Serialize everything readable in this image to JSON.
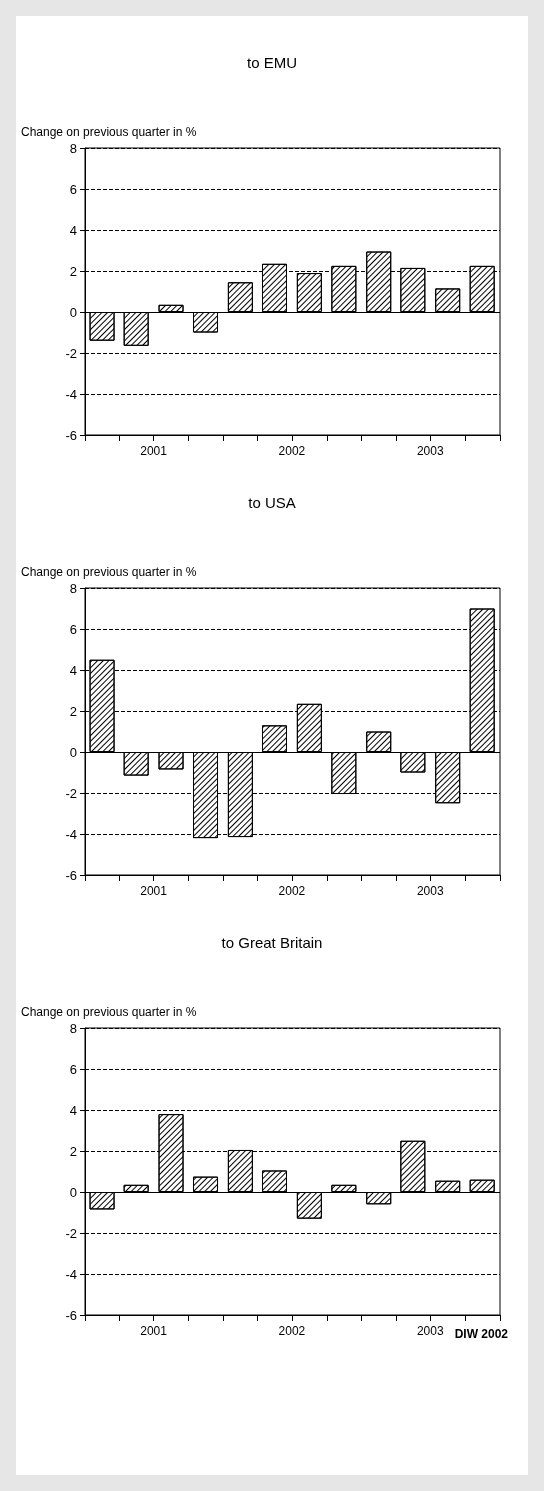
{
  "chart_data": [
    {
      "type": "bar",
      "title": "to EMU",
      "ylabel": "Change on previous quarter in %",
      "x": [
        "2001-02-15",
        "2001-05-16",
        "2001-08-16",
        "2001-11-15",
        "2002-02-15",
        "2002-05-16",
        "2002-08-16",
        "2002-11-15",
        "2003-02-15",
        "2003-05-16",
        "2003-08-16",
        "2003-11-15"
      ],
      "values": [
        -1.4,
        -1.65,
        0.35,
        -1.0,
        1.45,
        2.35,
        1.9,
        2.25,
        2.95,
        2.15,
        1.15,
        2.25
      ],
      "color": "#ffffff",
      "xlim": [
        "2001-01-01",
        "2004-01-01"
      ],
      "xticks": [
        {
          "value": "2001-01-01",
          "label": null
        },
        {
          "value": "2001-04-01",
          "label": null
        },
        {
          "value": "2001-07-01",
          "label": "2001"
        },
        {
          "value": "2001-10-01",
          "label": null
        },
        {
          "value": "2002-01-01",
          "label": null
        },
        {
          "value": "2002-04-01",
          "label": null
        },
        {
          "value": "2002-07-01",
          "label": "2002"
        },
        {
          "value": "2002-10-01",
          "label": null
        },
        {
          "value": "2003-01-01",
          "label": null
        },
        {
          "value": "2003-04-01",
          "label": null
        },
        {
          "value": "2003-07-01",
          "label": "2003"
        },
        {
          "value": "2003-10-01",
          "label": null
        },
        {
          "value": "2004-01-01",
          "label": null
        }
      ],
      "ylim": [
        -6,
        8
      ],
      "yticks": [
        -6,
        -4,
        -2,
        0,
        2,
        4,
        6,
        8
      ],
      "grid": "y",
      "ref_lines": [
        {
          "axis": "y",
          "value": 0,
          "line_style": "solid"
        }
      ]
    },
    {
      "type": "bar",
      "title": "to USA",
      "ylabel": "Change on previous quarter in %",
      "x": [
        "2001-02-15",
        "2001-05-16",
        "2001-08-16",
        "2001-11-15",
        "2002-02-15",
        "2002-05-16",
        "2002-08-16",
        "2002-11-15",
        "2003-02-15",
        "2003-05-16",
        "2003-08-16",
        "2003-11-15"
      ],
      "values": [
        4.5,
        -1.15,
        -0.85,
        -4.2,
        -4.15,
        1.3,
        2.35,
        -2.05,
        1.0,
        -1.0,
        -2.5,
        7.0
      ],
      "color": "#ffffff",
      "xlim": [
        "2001-01-01",
        "2004-01-01"
      ],
      "xticks": [
        {
          "value": "2001-01-01",
          "label": null
        },
        {
          "value": "2001-04-01",
          "label": null
        },
        {
          "value": "2001-07-01",
          "label": "2001"
        },
        {
          "value": "2001-10-01",
          "label": null
        },
        {
          "value": "2002-01-01",
          "label": null
        },
        {
          "value": "2002-04-01",
          "label": null
        },
        {
          "value": "2002-07-01",
          "label": "2002"
        },
        {
          "value": "2002-10-01",
          "label": null
        },
        {
          "value": "2003-01-01",
          "label": null
        },
        {
          "value": "2003-04-01",
          "label": null
        },
        {
          "value": "2003-07-01",
          "label": "2003"
        },
        {
          "value": "2003-10-01",
          "label": null
        },
        {
          "value": "2004-01-01",
          "label": null
        }
      ],
      "ylim": [
        -6,
        8
      ],
      "yticks": [
        -6,
        -4,
        -2,
        0,
        2,
        4,
        6,
        8
      ],
      "grid": "y",
      "ref_lines": [
        {
          "axis": "y",
          "value": 0,
          "line_style": "solid"
        }
      ]
    },
    {
      "type": "bar",
      "title": "to Great Britain",
      "ylabel": "Change on previous quarter in %",
      "x": [
        "2001-02-15",
        "2001-05-16",
        "2001-08-16",
        "2001-11-15",
        "2002-02-15",
        "2002-05-16",
        "2002-08-16",
        "2002-11-15",
        "2003-02-15",
        "2003-05-16",
        "2003-08-16",
        "2003-11-15"
      ],
      "values": [
        -0.85,
        0.35,
        3.8,
        0.75,
        2.05,
        1.05,
        -1.3,
        0.35,
        -0.6,
        2.5,
        0.55,
        0.6
      ],
      "color": "#ffffff",
      "xlim": [
        "2001-01-01",
        "2004-01-01"
      ],
      "xticks": [
        {
          "value": "2001-01-01",
          "label": null
        },
        {
          "value": "2001-04-01",
          "label": null
        },
        {
          "value": "2001-07-01",
          "label": "2001"
        },
        {
          "value": "2001-10-01",
          "label": null
        },
        {
          "value": "2002-01-01",
          "label": null
        },
        {
          "value": "2002-04-01",
          "label": null
        },
        {
          "value": "2002-07-01",
          "label": "2002"
        },
        {
          "value": "2002-10-01",
          "label": null
        },
        {
          "value": "2003-01-01",
          "label": null
        },
        {
          "value": "2003-04-01",
          "label": null
        },
        {
          "value": "2003-07-01",
          "label": "2003"
        },
        {
          "value": "2003-10-01",
          "label": null
        },
        {
          "value": "2004-01-01",
          "label": null
        }
      ],
      "ylim": [
        -6,
        8
      ],
      "yticks": [
        -6,
        -4,
        -2,
        0,
        2,
        4,
        6,
        8
      ],
      "grid": "y",
      "ref_lines": [
        {
          "axis": "y",
          "value": 0,
          "line_style": "solid"
        }
      ],
      "annotations": [
        "DIW 2002"
      ]
    }
  ]
}
